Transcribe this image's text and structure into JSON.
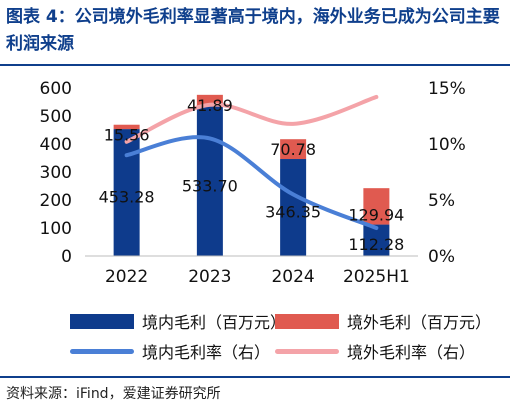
{
  "title": "图表 4：公司境外毛利率显著高于境内，海外业务已成为公司主要利润来源",
  "source": "资料来源：iFind，爱建证券研究所",
  "chart_data": {
    "type": "bar",
    "categories": [
      "2022",
      "2023",
      "2024",
      "2025H1"
    ],
    "series": [
      {
        "name": "境内毛利（百万元）",
        "type": "bar",
        "axis": "left",
        "values": [
          453.28,
          533.7,
          346.35,
          112.28
        ],
        "color": "#0e3b8c"
      },
      {
        "name": "境外毛利（百万元）",
        "type": "bar",
        "axis": "left",
        "values": [
          15.56,
          41.89,
          70.78,
          129.94
        ],
        "color": "#e05a50"
      },
      {
        "name": "境内毛利率（右）",
        "type": "line",
        "axis": "right",
        "values": [
          9.0,
          10.5,
          5.5,
          2.5
        ],
        "color": "#4a7fd6"
      },
      {
        "name": "境外毛利率（右）",
        "type": "line",
        "axis": "right",
        "values": [
          10.2,
          13.5,
          11.8,
          14.2
        ],
        "color": "#f4a3a8"
      }
    ],
    "yleft": {
      "ylim": [
        0,
        600
      ],
      "ticks": [
        "0",
        "100",
        "200",
        "300",
        "400",
        "500",
        "600"
      ]
    },
    "yright": {
      "ylim": [
        0,
        15
      ],
      "ticks": [
        "0%",
        "5%",
        "10%",
        "15%"
      ]
    },
    "data_labels": {
      "domestic": [
        "453.28",
        "533.70",
        "346.35",
        "112.28"
      ],
      "overseas": [
        "15.56",
        "41.89",
        "70.78",
        "129.94"
      ]
    },
    "legend_position": "bottom"
  }
}
